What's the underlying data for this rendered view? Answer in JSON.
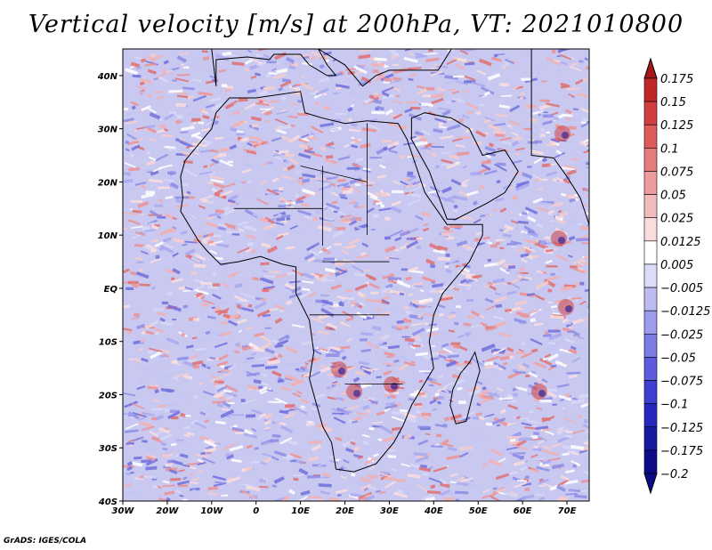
{
  "title": "Vertical velocity [m/s] at 200hPa, VT: 2021010800",
  "credit": "GrADS: IGES/COLA",
  "map": {
    "lon_range": [
      -30,
      75
    ],
    "lat_range": [
      -40,
      45
    ],
    "lat_ticks": [
      "40N",
      "30N",
      "20N",
      "10N",
      "EQ",
      "10S",
      "20S",
      "30S",
      "40S"
    ],
    "lat_values": [
      40,
      30,
      20,
      10,
      0,
      -10,
      -20,
      -30,
      -40
    ],
    "lon_ticks": [
      "30W",
      "20W",
      "10W",
      "0",
      "10E",
      "20E",
      "30E",
      "40E",
      "50E",
      "60E",
      "70E"
    ],
    "lon_values": [
      -30,
      -20,
      -10,
      0,
      10,
      20,
      30,
      40,
      50,
      60,
      70
    ]
  },
  "colorbar": {
    "labels": [
      "0.175",
      "0.15",
      "0.125",
      "0.1",
      "0.075",
      "0.05",
      "0.025",
      "0.0125",
      "0.005",
      "−0.005",
      "−0.0125",
      "−0.025",
      "−0.05",
      "−0.075",
      "−0.1",
      "−0.125",
      "−0.175",
      "−0.2"
    ],
    "colors": [
      "#a01818",
      "#be2828",
      "#d04040",
      "#dc5c5c",
      "#e47c7c",
      "#ec9c9c",
      "#f3bcbc",
      "#f9dcdc",
      "#ffffff",
      "#dcdcf9",
      "#bcbcf3",
      "#9c9cec",
      "#7c7ce4",
      "#5c5cdc",
      "#4040d0",
      "#2828be",
      "#1818a0",
      "#0c0c88"
    ]
  }
}
